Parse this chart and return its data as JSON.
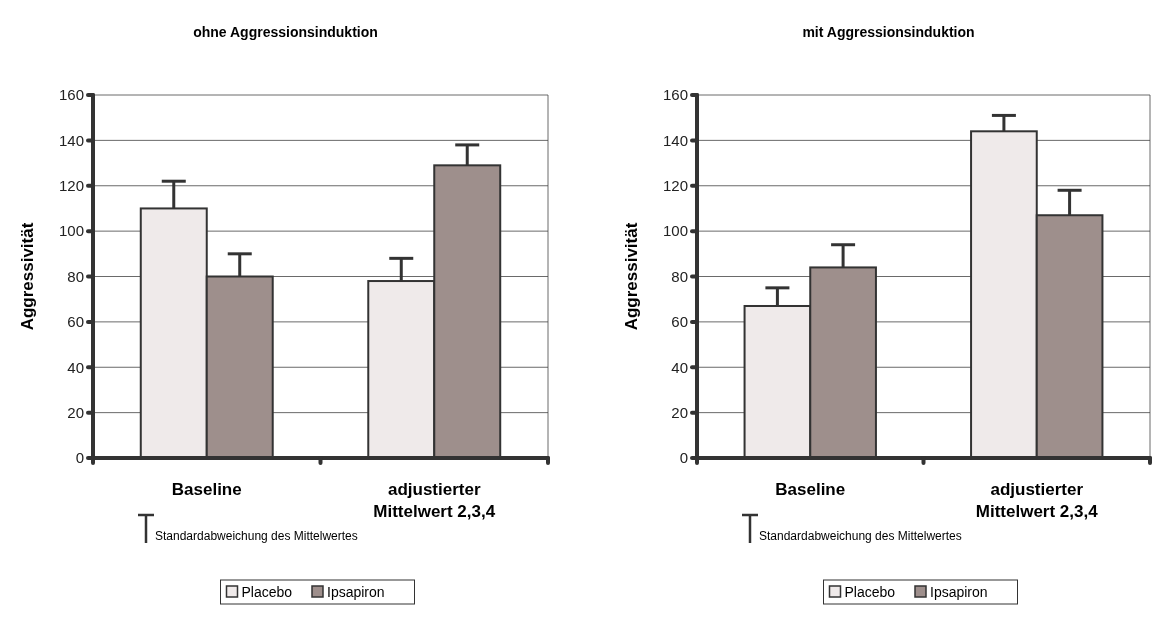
{
  "chart_data": [
    {
      "type": "bar",
      "title": "ohne Aggressionsinduktion",
      "ylabel": "Aggressivität",
      "categories": [
        "Baseline",
        "adjustierter Mittelwert 2,3,4"
      ],
      "series": [
        {
          "name": "Placebo",
          "color": "#efeaea",
          "values": [
            110,
            78
          ],
          "errors": [
            [
              110,
              122
            ],
            [
              78,
              88
            ]
          ]
        },
        {
          "name": "Ipsapiron",
          "color": "#9e8f8c",
          "values": [
            80,
            129
          ],
          "errors": [
            [
              80,
              90
            ],
            [
              129,
              138
            ]
          ]
        }
      ],
      "ylim": [
        0,
        160
      ],
      "yticks": [
        0,
        20,
        40,
        60,
        80,
        100,
        120,
        140,
        160
      ],
      "grid": "y",
      "legend": "bottom",
      "annotations": [
        "Standardabweichung des Mittelwertes"
      ]
    },
    {
      "type": "bar",
      "title": "mit Aggressionsinduktion",
      "ylabel": "Aggressivität",
      "categories": [
        "Baseline",
        "adjustierter Mittelwert 2,3,4"
      ],
      "series": [
        {
          "name": "Placebo",
          "color": "#efeaea",
          "values": [
            67,
            144
          ],
          "errors": [
            [
              67,
              75
            ],
            [
              144,
              151
            ]
          ]
        },
        {
          "name": "Ipsapiron",
          "color": "#9e8f8c",
          "values": [
            84,
            107
          ],
          "errors": [
            [
              84,
              94
            ],
            [
              107,
              118
            ]
          ]
        }
      ],
      "ylim": [
        0,
        160
      ],
      "yticks": [
        0,
        20,
        40,
        60,
        80,
        100,
        120,
        140,
        160
      ],
      "grid": "y",
      "legend": "bottom",
      "annotations": [
        "Standardabweichung des Mittelwertes"
      ]
    }
  ]
}
